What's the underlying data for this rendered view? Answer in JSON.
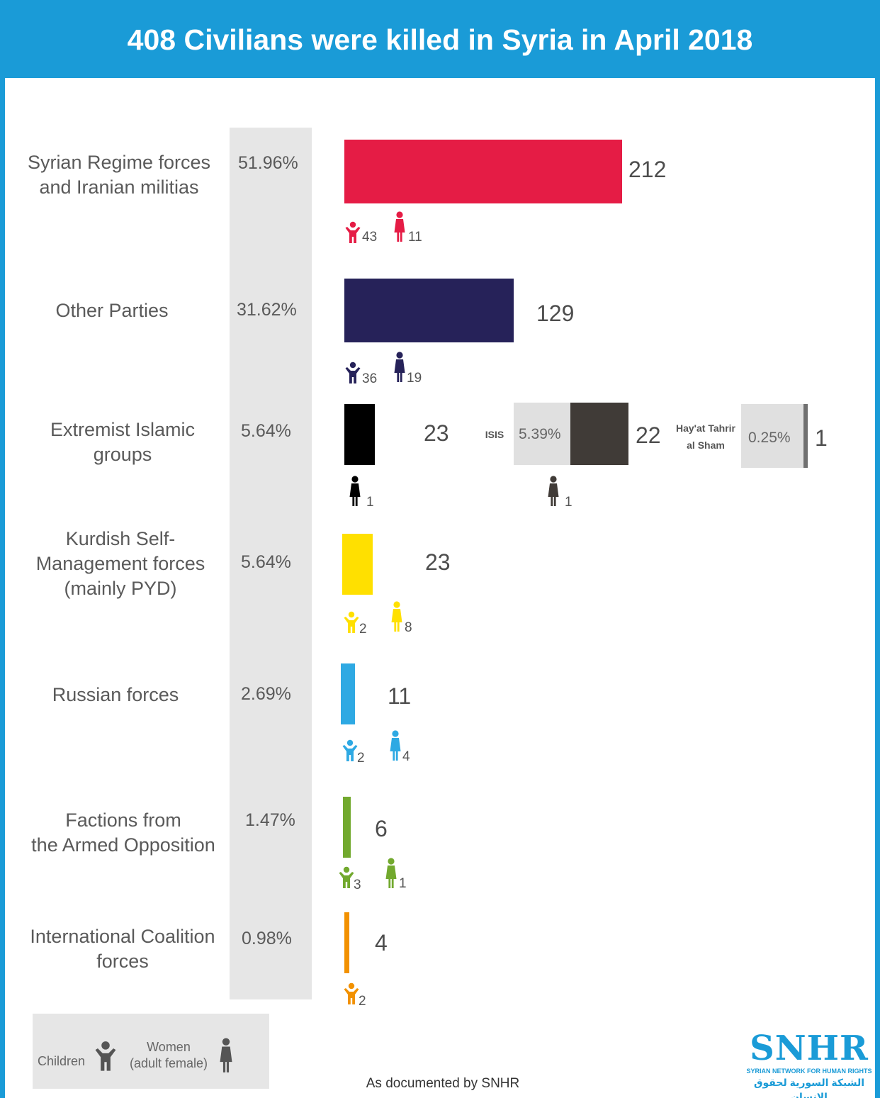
{
  "title": "408 Civilians were killed in Syria in April 2018",
  "chart_data": {
    "type": "bar",
    "orientation": "horizontal",
    "title": "408 Civilians were killed in Syria in April 2018",
    "categories": [
      "Syrian Regime forces and Iranian militias",
      "Other Parties",
      "Extremist Islamic groups",
      "Kurdish Self-Management forces (mainly PYD)",
      "Russian forces",
      "Factions from the Armed Opposition",
      "International Coalition forces"
    ],
    "values": [
      212,
      129,
      23,
      23,
      11,
      6,
      4
    ],
    "groups": [
      {
        "label_lines": [
          "Syrian Regime forces",
          "and Iranian militias"
        ],
        "pct": "51.96%",
        "value": 212,
        "value_label": "212",
        "color": "#e51c45",
        "children": 43,
        "children_label": "43",
        "women": 11,
        "women_label": "11"
      },
      {
        "label_lines": [
          "Other Parties"
        ],
        "pct": "31.62%",
        "value": 129,
        "value_label": "129",
        "color": "#262259",
        "children": 36,
        "children_label": "36",
        "women": 19,
        "women_label": "19"
      },
      {
        "label_lines": [
          "Extremist Islamic",
          "groups"
        ],
        "pct": "5.64%",
        "value": 23,
        "value_label": "23",
        "color": "#000000",
        "children": null,
        "children_label": null,
        "women": 1,
        "women_label": "1"
      },
      {
        "label_lines": [
          "Kurdish Self-",
          "Management forces",
          "(mainly PYD)"
        ],
        "pct": "5.64%",
        "value": 23,
        "value_label": "23",
        "color": "#ffe000",
        "children": 2,
        "children_label": "2",
        "women": 8,
        "women_label": "8"
      },
      {
        "label_lines": [
          "Russian forces"
        ],
        "pct": "2.69%",
        "value": 11,
        "value_label": "11",
        "color": "#2ea9e3",
        "children": 2,
        "children_label": "2",
        "women": 4,
        "women_label": "4"
      },
      {
        "label_lines": [
          "Factions from",
          "the Armed Opposition"
        ],
        "pct": "1.47%",
        "value": 6,
        "value_label": "6",
        "color": "#72a92e",
        "children": 3,
        "children_label": "3",
        "women": 1,
        "women_label": "1"
      },
      {
        "label_lines": [
          "International Coalition",
          "forces"
        ],
        "pct": "0.98%",
        "value": 4,
        "value_label": "4",
        "color": "#f29100",
        "children": 2,
        "children_label": "2",
        "women": null,
        "women_label": null
      }
    ],
    "extremist_breakdown": [
      {
        "label": "ISIS",
        "pct": "5.39%",
        "value": 22,
        "value_label": "22",
        "color": "#403b37",
        "women": 1,
        "women_label": "1"
      },
      {
        "label_lines": [
          "Hay'at Tahrir",
          "al Sham"
        ],
        "pct": "0.25%",
        "value": 1,
        "value_label": "1",
        "color": "#707070"
      }
    ]
  },
  "legend": {
    "children_label": "Children",
    "women_label_lines": [
      "Women",
      "(adult female)"
    ],
    "icon_color": "#555555"
  },
  "footer_note": "As documented by SNHR",
  "logo": {
    "main": "SNHR",
    "subtitle": "SYRIAN NETWORK FOR HUMAN RIGHTS",
    "arabic": "الشبكة السورية لحقوق الإنسان"
  }
}
